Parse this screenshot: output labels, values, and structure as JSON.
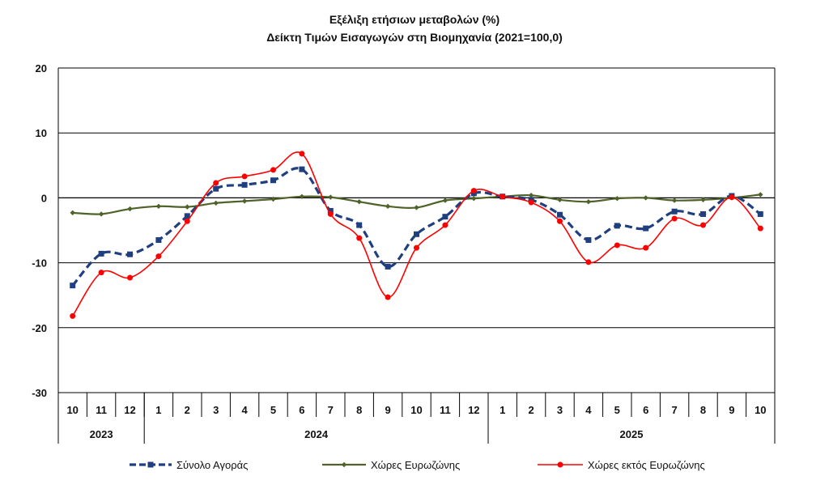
{
  "chart_data": {
    "type": "line",
    "title": "Εξέλιξη ετήσιων μεταβολών (%)",
    "subtitle": "Δείκτη Τιμών Εισαγωγών στη Βιομηχανία (2021=100,0)",
    "ylim": [
      -30,
      20
    ],
    "yticks": [
      20,
      10,
      0,
      -10,
      -20,
      -30
    ],
    "grid": true,
    "legend_position": "bottom",
    "categories": [
      "10",
      "11",
      "12",
      "1",
      "2",
      "3",
      "4",
      "5",
      "6",
      "7",
      "8",
      "9",
      "10",
      "11",
      "12",
      "1",
      "2",
      "3",
      "4",
      "5",
      "6",
      "7",
      "8",
      "9",
      "10"
    ],
    "years": [
      {
        "label": "2023",
        "start": 0,
        "end": 2
      },
      {
        "label": "2024",
        "start": 3,
        "end": 14
      },
      {
        "label": "2025",
        "start": 15,
        "end": 24
      }
    ],
    "series": [
      {
        "name": "Σύνολο Αγοράς",
        "color": "#1f3f7f",
        "style": "dashed-square",
        "values": [
          -13.5,
          -8.6,
          -8.7,
          -6.5,
          -2.8,
          1.4,
          2.0,
          2.7,
          4.4,
          -2.0,
          -4.2,
          -10.6,
          -5.6,
          -2.9,
          0.7,
          0.2,
          -0.3,
          -2.6,
          -6.5,
          -4.3,
          -4.7,
          -2.1,
          -2.5,
          0.3,
          -2.5
        ]
      },
      {
        "name": "Χώρες Ευρωζώνης",
        "color": "#4f6228",
        "style": "solid-diamond",
        "values": [
          -2.3,
          -2.5,
          -1.7,
          -1.3,
          -1.4,
          -0.8,
          -0.5,
          -0.2,
          0.2,
          0.1,
          -0.6,
          -1.3,
          -1.5,
          -0.4,
          -0.1,
          0.2,
          0.4,
          -0.3,
          -0.6,
          -0.1,
          0.0,
          -0.4,
          -0.3,
          0.0,
          0.5
        ]
      },
      {
        "name": "Χώρες εκτός Ευρωζώνης",
        "color": "#ff0000",
        "style": "solid-circle",
        "values": [
          -18.2,
          -11.5,
          -12.3,
          -9.0,
          -3.6,
          2.3,
          3.3,
          4.3,
          6.8,
          -2.5,
          -6.2,
          -15.3,
          -7.7,
          -4.2,
          1.1,
          0.2,
          -0.7,
          -3.6,
          -9.9,
          -7.3,
          -7.7,
          -3.2,
          -4.2,
          0.1,
          -4.7
        ]
      }
    ]
  }
}
